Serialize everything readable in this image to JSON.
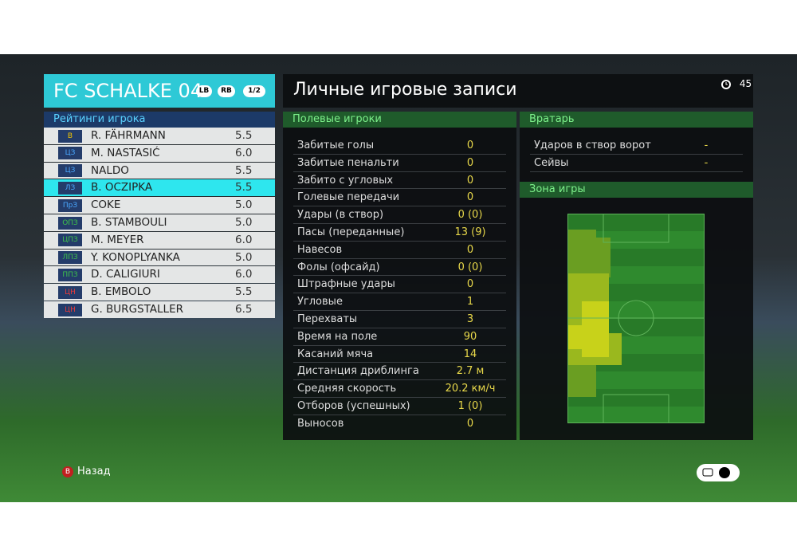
{
  "header": {
    "team": "FC SCHALKE 04",
    "badges": [
      "LB",
      "RB"
    ],
    "page": "1/2",
    "title": "Личные игровые записи",
    "timer": "45"
  },
  "ratings": {
    "title": "Рейтинги игрока",
    "selected": 3,
    "rows": [
      {
        "position": "В",
        "color": "#f2c500",
        "name": "R. FÄHRMANN",
        "rating": "5.5"
      },
      {
        "position": "ЦЗ",
        "color": "#4aa8ff",
        "name": "M. NASTASIĆ",
        "rating": "6.0"
      },
      {
        "position": "ЦЗ",
        "color": "#4aa8ff",
        "name": "NALDO",
        "rating": "5.5"
      },
      {
        "position": "ЛЗ",
        "color": "#4aa8ff",
        "name": "B. OCZIPKA",
        "rating": "5.5"
      },
      {
        "position": "ПрЗ",
        "color": "#4aa8ff",
        "name": "COKE",
        "rating": "5.0"
      },
      {
        "position": "ОПЗ",
        "color": "#3ec24a",
        "name": "B. STAMBOULI",
        "rating": "5.0"
      },
      {
        "position": "ЦПЗ",
        "color": "#3ec24a",
        "name": "M. MEYER",
        "rating": "6.0"
      },
      {
        "position": "ЛПЗ",
        "color": "#3ec24a",
        "name": "Y. KONOPLYANKA",
        "rating": "5.0"
      },
      {
        "position": "ППЗ",
        "color": "#3ec24a",
        "name": "D. CALIGIURI",
        "rating": "6.0"
      },
      {
        "position": "ЦН",
        "color": "#e83a3a",
        "name": "B. EMBOLO",
        "rating": "5.5"
      },
      {
        "position": "ЦН",
        "color": "#e83a3a",
        "name": "G. BURGSTALLER",
        "rating": "6.5"
      }
    ]
  },
  "field_players": {
    "title": "Полевые игроки",
    "rows": [
      {
        "label": "Забитые голы",
        "value": "0"
      },
      {
        "label": "Забитые пенальти",
        "value": "0"
      },
      {
        "label": "Забито с угловых",
        "value": "0"
      },
      {
        "label": "Голевые передачи",
        "value": "0"
      },
      {
        "label": "Удары (в створ)",
        "value": "0 (0)"
      },
      {
        "label": "Пасы (переданные)",
        "value": "13 (9)"
      },
      {
        "label": "Навесов",
        "value": "0"
      },
      {
        "label": "Фолы (офсайд)",
        "value": "0 (0)"
      },
      {
        "label": "Штрафные удары",
        "value": "0"
      },
      {
        "label": "Угловые",
        "value": "1"
      },
      {
        "label": "Перехваты",
        "value": "3"
      },
      {
        "label": "Время на поле",
        "value": "90"
      },
      {
        "label": "Касаний мяча",
        "value": "14"
      },
      {
        "label": "Дистанция дриблинга",
        "value": "2.7 м"
      },
      {
        "label": "Средняя скорость",
        "value": "20.2 км/ч"
      },
      {
        "label": "Отборов (успешных)",
        "value": "1 (0)"
      },
      {
        "label": "Выносов",
        "value": "0"
      }
    ]
  },
  "goalkeeper": {
    "title": "Вратарь",
    "rows": [
      {
        "label": "Ударов в створ ворот",
        "value": "-"
      },
      {
        "label": "Сейвы",
        "value": "-"
      }
    ]
  },
  "zone": {
    "title": "Зона игры"
  },
  "footer": {
    "back_button": "B",
    "back": "Назад"
  }
}
